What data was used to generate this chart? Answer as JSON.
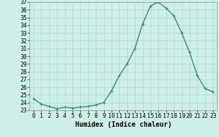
{
  "xlabel": "Humidex (Indice chaleur)",
  "ylabel": "",
  "x_values": [
    0,
    1,
    2,
    3,
    4,
    5,
    6,
    7,
    8,
    9,
    10,
    11,
    12,
    13,
    14,
    15,
    16,
    17,
    18,
    19,
    20,
    21,
    22,
    23
  ],
  "y_values": [
    24.5,
    23.8,
    23.5,
    23.2,
    23.4,
    23.3,
    23.4,
    23.5,
    23.7,
    24.0,
    25.5,
    27.5,
    29.0,
    31.0,
    34.2,
    36.5,
    37.0,
    36.2,
    35.2,
    33.0,
    30.5,
    27.5,
    25.8,
    25.4
  ],
  "line_color": "#2e8b7a",
  "marker": "+",
  "marker_size": 3,
  "bg_color": "#ceeee8",
  "grid_color": "#aad4cc",
  "ylim": [
    23,
    37
  ],
  "xlim": [
    -0.5,
    23.5
  ],
  "yticks": [
    23,
    24,
    25,
    26,
    27,
    28,
    29,
    30,
    31,
    32,
    33,
    34,
    35,
    36,
    37
  ],
  "xticks": [
    0,
    1,
    2,
    3,
    4,
    5,
    6,
    7,
    8,
    9,
    10,
    11,
    12,
    13,
    14,
    15,
    16,
    17,
    18,
    19,
    20,
    21,
    22,
    23
  ],
  "xlabel_fontsize": 7,
  "tick_fontsize": 6,
  "line_width": 1.0
}
